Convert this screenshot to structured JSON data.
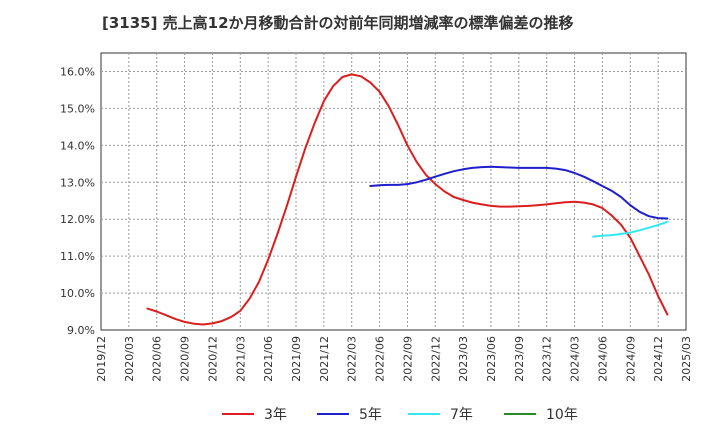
{
  "chart_data": {
    "type": "line",
    "title": "[3135]  売上高12か月移動合計の対前年同期増減率の標準偏差の推移",
    "xlabel": "",
    "ylabel": "",
    "ylim": [
      9.0,
      16.5
    ],
    "y_ticks": [
      "9.0%",
      "10.0%",
      "11.0%",
      "12.0%",
      "13.0%",
      "14.0%",
      "15.0%",
      "16.0%"
    ],
    "y_tick_values": [
      9,
      10,
      11,
      12,
      13,
      14,
      15,
      16
    ],
    "x_ticks": [
      "2019/12",
      "2020/03",
      "2020/06",
      "2020/09",
      "2020/12",
      "2021/03",
      "2021/06",
      "2021/09",
      "2021/12",
      "2022/03",
      "2022/06",
      "2022/09",
      "2022/12",
      "2023/03",
      "2023/06",
      "2023/09",
      "2023/12",
      "2024/03",
      "2024/06",
      "2024/09",
      "2024/12",
      "2025/03"
    ],
    "grid": true,
    "legend_position": "bottom",
    "series": [
      {
        "name": "3年",
        "color": "#dd1e1e",
        "points": [
          [
            "2020/05",
            9.58
          ],
          [
            "2020/06",
            9.5
          ],
          [
            "2020/07",
            9.4
          ],
          [
            "2020/08",
            9.3
          ],
          [
            "2020/09",
            9.22
          ],
          [
            "2020/10",
            9.17
          ],
          [
            "2020/11",
            9.15
          ],
          [
            "2020/12",
            9.18
          ],
          [
            "2021/01",
            9.24
          ],
          [
            "2021/02",
            9.35
          ],
          [
            "2021/03",
            9.52
          ],
          [
            "2021/04",
            9.85
          ],
          [
            "2021/05",
            10.3
          ],
          [
            "2021/06",
            10.9
          ],
          [
            "2021/07",
            11.6
          ],
          [
            "2021/08",
            12.35
          ],
          [
            "2021/09",
            13.15
          ],
          [
            "2021/10",
            13.92
          ],
          [
            "2021/11",
            14.6
          ],
          [
            "2021/12",
            15.2
          ],
          [
            "2022/01",
            15.6
          ],
          [
            "2022/02",
            15.85
          ],
          [
            "2022/03",
            15.92
          ],
          [
            "2022/04",
            15.87
          ],
          [
            "2022/05",
            15.7
          ],
          [
            "2022/06",
            15.45
          ],
          [
            "2022/07",
            15.05
          ],
          [
            "2022/08",
            14.55
          ],
          [
            "2022/09",
            14.0
          ],
          [
            "2022/10",
            13.55
          ],
          [
            "2022/11",
            13.2
          ],
          [
            "2022/12",
            12.95
          ],
          [
            "2023/01",
            12.75
          ],
          [
            "2023/02",
            12.6
          ],
          [
            "2023/03",
            12.52
          ],
          [
            "2023/04",
            12.45
          ],
          [
            "2023/05",
            12.4
          ],
          [
            "2023/06",
            12.36
          ],
          [
            "2023/07",
            12.34
          ],
          [
            "2023/08",
            12.34
          ],
          [
            "2023/09",
            12.35
          ],
          [
            "2023/10",
            12.36
          ],
          [
            "2023/11",
            12.38
          ],
          [
            "2023/12",
            12.4
          ],
          [
            "2024/01",
            12.43
          ],
          [
            "2024/02",
            12.46
          ],
          [
            "2024/03",
            12.47
          ],
          [
            "2024/04",
            12.45
          ],
          [
            "2024/05",
            12.4
          ],
          [
            "2024/06",
            12.3
          ],
          [
            "2024/07",
            12.1
          ],
          [
            "2024/08",
            11.85
          ],
          [
            "2024/09",
            11.5
          ],
          [
            "2024/10",
            11.0
          ],
          [
            "2024/11",
            10.5
          ],
          [
            "2024/12",
            9.92
          ],
          [
            "2025/01",
            9.42
          ]
        ]
      },
      {
        "name": "5年",
        "color": "#1f1fcc",
        "points": [
          [
            "2022/05",
            12.9
          ],
          [
            "2022/06",
            12.92
          ],
          [
            "2022/07",
            12.93
          ],
          [
            "2022/08",
            12.93
          ],
          [
            "2022/09",
            12.95
          ],
          [
            "2022/10",
            13.0
          ],
          [
            "2022/11",
            13.07
          ],
          [
            "2022/12",
            13.15
          ],
          [
            "2023/01",
            13.23
          ],
          [
            "2023/02",
            13.3
          ],
          [
            "2023/03",
            13.35
          ],
          [
            "2023/04",
            13.39
          ],
          [
            "2023/05",
            13.41
          ],
          [
            "2023/06",
            13.42
          ],
          [
            "2023/07",
            13.41
          ],
          [
            "2023/08",
            13.4
          ],
          [
            "2023/09",
            13.39
          ],
          [
            "2023/10",
            13.39
          ],
          [
            "2023/11",
            13.39
          ],
          [
            "2023/12",
            13.39
          ],
          [
            "2024/01",
            13.37
          ],
          [
            "2024/02",
            13.33
          ],
          [
            "2024/03",
            13.25
          ],
          [
            "2024/04",
            13.15
          ],
          [
            "2024/05",
            13.03
          ],
          [
            "2024/06",
            12.9
          ],
          [
            "2024/07",
            12.77
          ],
          [
            "2024/08",
            12.6
          ],
          [
            "2024/09",
            12.38
          ],
          [
            "2024/10",
            12.2
          ],
          [
            "2024/11",
            12.08
          ],
          [
            "2024/12",
            12.03
          ],
          [
            "2025/01",
            12.02
          ]
        ]
      },
      {
        "name": "7年",
        "color": "#33e8f0",
        "points": [
          [
            "2024/05",
            11.53
          ],
          [
            "2024/06",
            11.55
          ],
          [
            "2024/07",
            11.57
          ],
          [
            "2024/08",
            11.6
          ],
          [
            "2024/09",
            11.64
          ],
          [
            "2024/10",
            11.7
          ],
          [
            "2024/11",
            11.77
          ],
          [
            "2024/12",
            11.84
          ],
          [
            "2025/01",
            11.93
          ]
        ]
      },
      {
        "name": "10年",
        "color": "#2a8a2a",
        "points": []
      }
    ]
  }
}
